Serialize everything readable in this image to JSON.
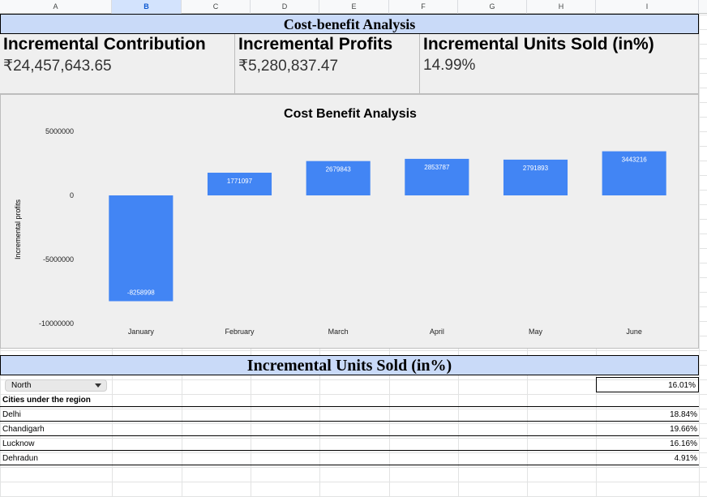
{
  "columns": [
    "A",
    "B",
    "C",
    "D",
    "E",
    "F",
    "G",
    "H",
    "I"
  ],
  "selected_column": "B",
  "title": "Cost-benefit Analysis",
  "kpis": [
    {
      "label": "Incremental Contribution",
      "value": "₹24,457,643.65"
    },
    {
      "label": "Incremental Profits",
      "value": "₹5,280,837.47"
    },
    {
      "label": "Incremental Units Sold (in%)",
      "value": "14.99%"
    }
  ],
  "chart_data": {
    "type": "bar",
    "title": "Cost Benefit Analysis",
    "ylabel": "Incremental profits",
    "xlabel": "",
    "categories": [
      "January",
      "February",
      "March",
      "April",
      "May",
      "June"
    ],
    "values": [
      -8258998,
      1771097,
      2679843,
      2853787,
      2791893,
      3443216
    ],
    "data_labels": [
      "-8258998",
      "1771097",
      "2679843",
      "2853787",
      "2791893",
      "3443216"
    ],
    "yticks": [
      5000000,
      0,
      -5000000,
      -10000000
    ],
    "ytick_labels": [
      "5000000",
      "0",
      "-5000000",
      "-10000000"
    ],
    "ylim": [
      -10000000,
      5000000
    ],
    "bar_color": "#4285f4",
    "grid": false
  },
  "table": {
    "title": "Incremental Units Sold (in%)",
    "region": "North",
    "region_value": "16.01%",
    "cities_header": "Cities under the region",
    "cities": [
      {
        "name": "Delhi",
        "value": "18.84%"
      },
      {
        "name": "Chandigarh",
        "value": "19.66%"
      },
      {
        "name": "Lucknow",
        "value": "16.16%"
      },
      {
        "name": "Dehradun",
        "value": "4.91%"
      }
    ]
  }
}
